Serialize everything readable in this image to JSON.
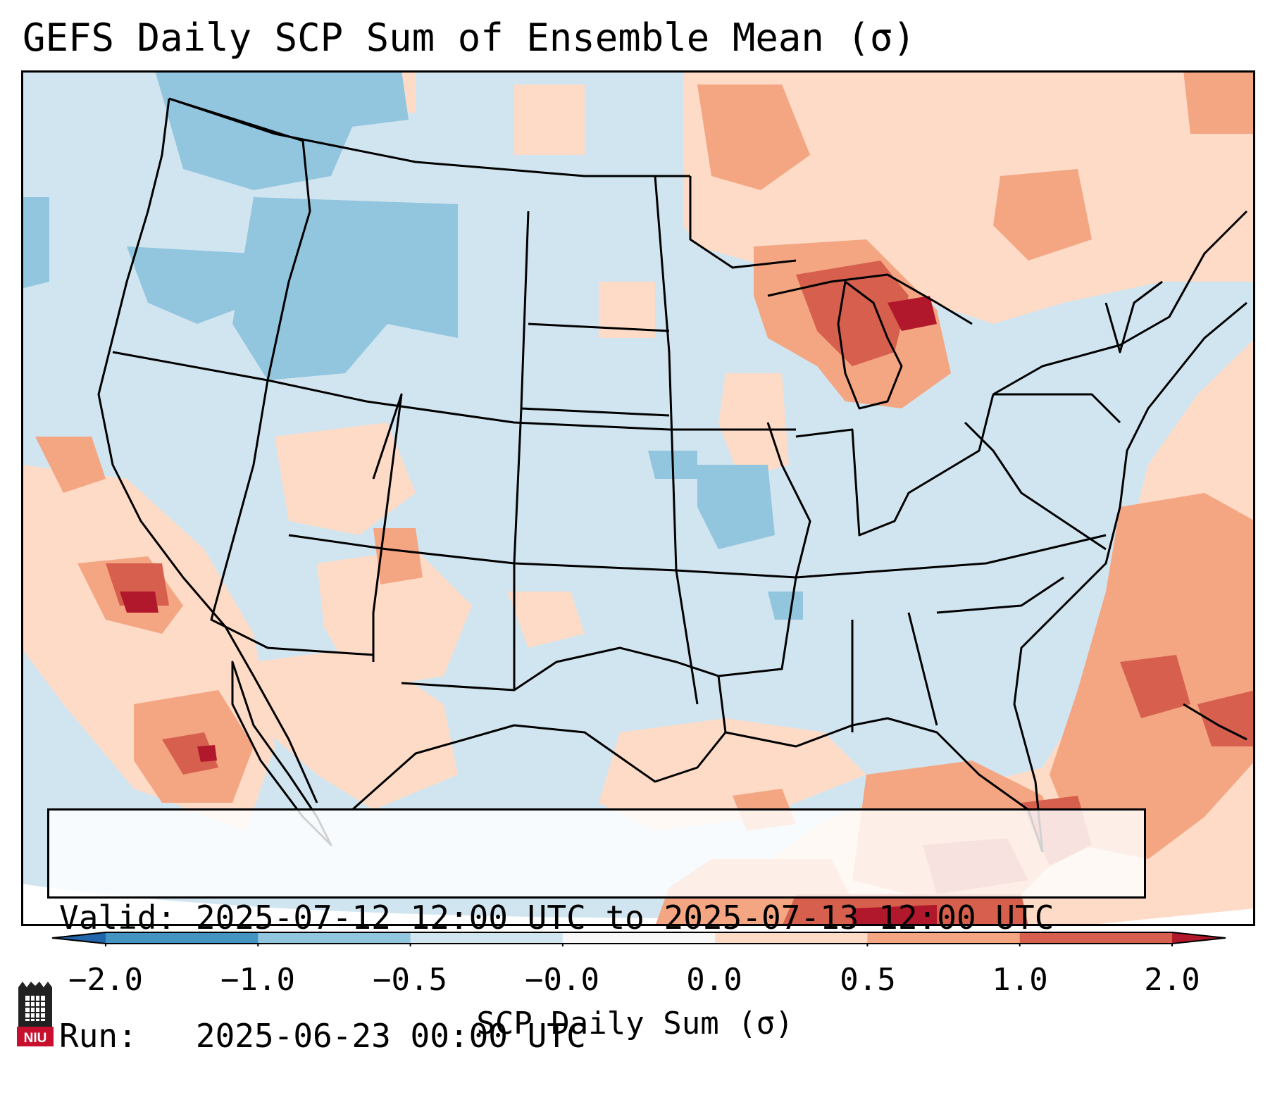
{
  "title": "GEFS Daily SCP Sum of Ensemble Mean (σ)",
  "info": {
    "valid_label": "Valid:",
    "valid_value": "2025-07-12 12:00 UTC to 2025-07-13 12:00 UTC",
    "run_label": "Run:",
    "run_value": "2025-06-23 00:00 UTC"
  },
  "colorbar": {
    "label": "SCP Daily Sum (σ)",
    "ticks": [
      "−2.0",
      "−1.0",
      "−0.5",
      "−0.0",
      "0.0",
      "0.5",
      "1.0",
      "2.0"
    ],
    "bins": [
      {
        "from": "<-2.0",
        "color": "#2166ac"
      },
      {
        "from": "-2.0",
        "to": "-1.0",
        "color": "#4393c3"
      },
      {
        "from": "-1.0",
        "to": "-0.5",
        "color": "#92c5de"
      },
      {
        "from": "-0.5",
        "to": "-0.0",
        "color": "#d1e5f0"
      },
      {
        "from": "-0.0",
        "to": "0.0",
        "color": "#f7f7f7"
      },
      {
        "from": "0.0",
        "to": "0.5",
        "color": "#fddbc7"
      },
      {
        "from": "0.5",
        "to": "1.0",
        "color": "#f4a582"
      },
      {
        "from": "1.0",
        "to": "2.0",
        "color": "#d6604d"
      },
      {
        "from": ">2.0",
        "color": "#b2182b"
      }
    ]
  },
  "map": {
    "background_category": "-0.5 to -0.0",
    "highlights": [
      {
        "region": "Great Lakes / Michigan",
        "category": "1.0 to 2.0"
      },
      {
        "region": "Gulf of Mexico / Cuba",
        "category": "1.0 to 2.0"
      },
      {
        "region": "Western Atlantic",
        "category": "0.5 to 1.0"
      },
      {
        "region": "Baja California / Pacific coast",
        "category": "1.0 to 2.0"
      },
      {
        "region": "Idaho / Montana / Pacific Northwest",
        "category": "-1.0 to -0.5"
      },
      {
        "region": "Southern Ontario / Quebec",
        "category": "0.0 to 0.5"
      },
      {
        "region": "New Mexico / Arizona",
        "category": "0.0 to 0.5"
      }
    ]
  },
  "logo": {
    "text": "NIU",
    "color": "#c8102e"
  }
}
